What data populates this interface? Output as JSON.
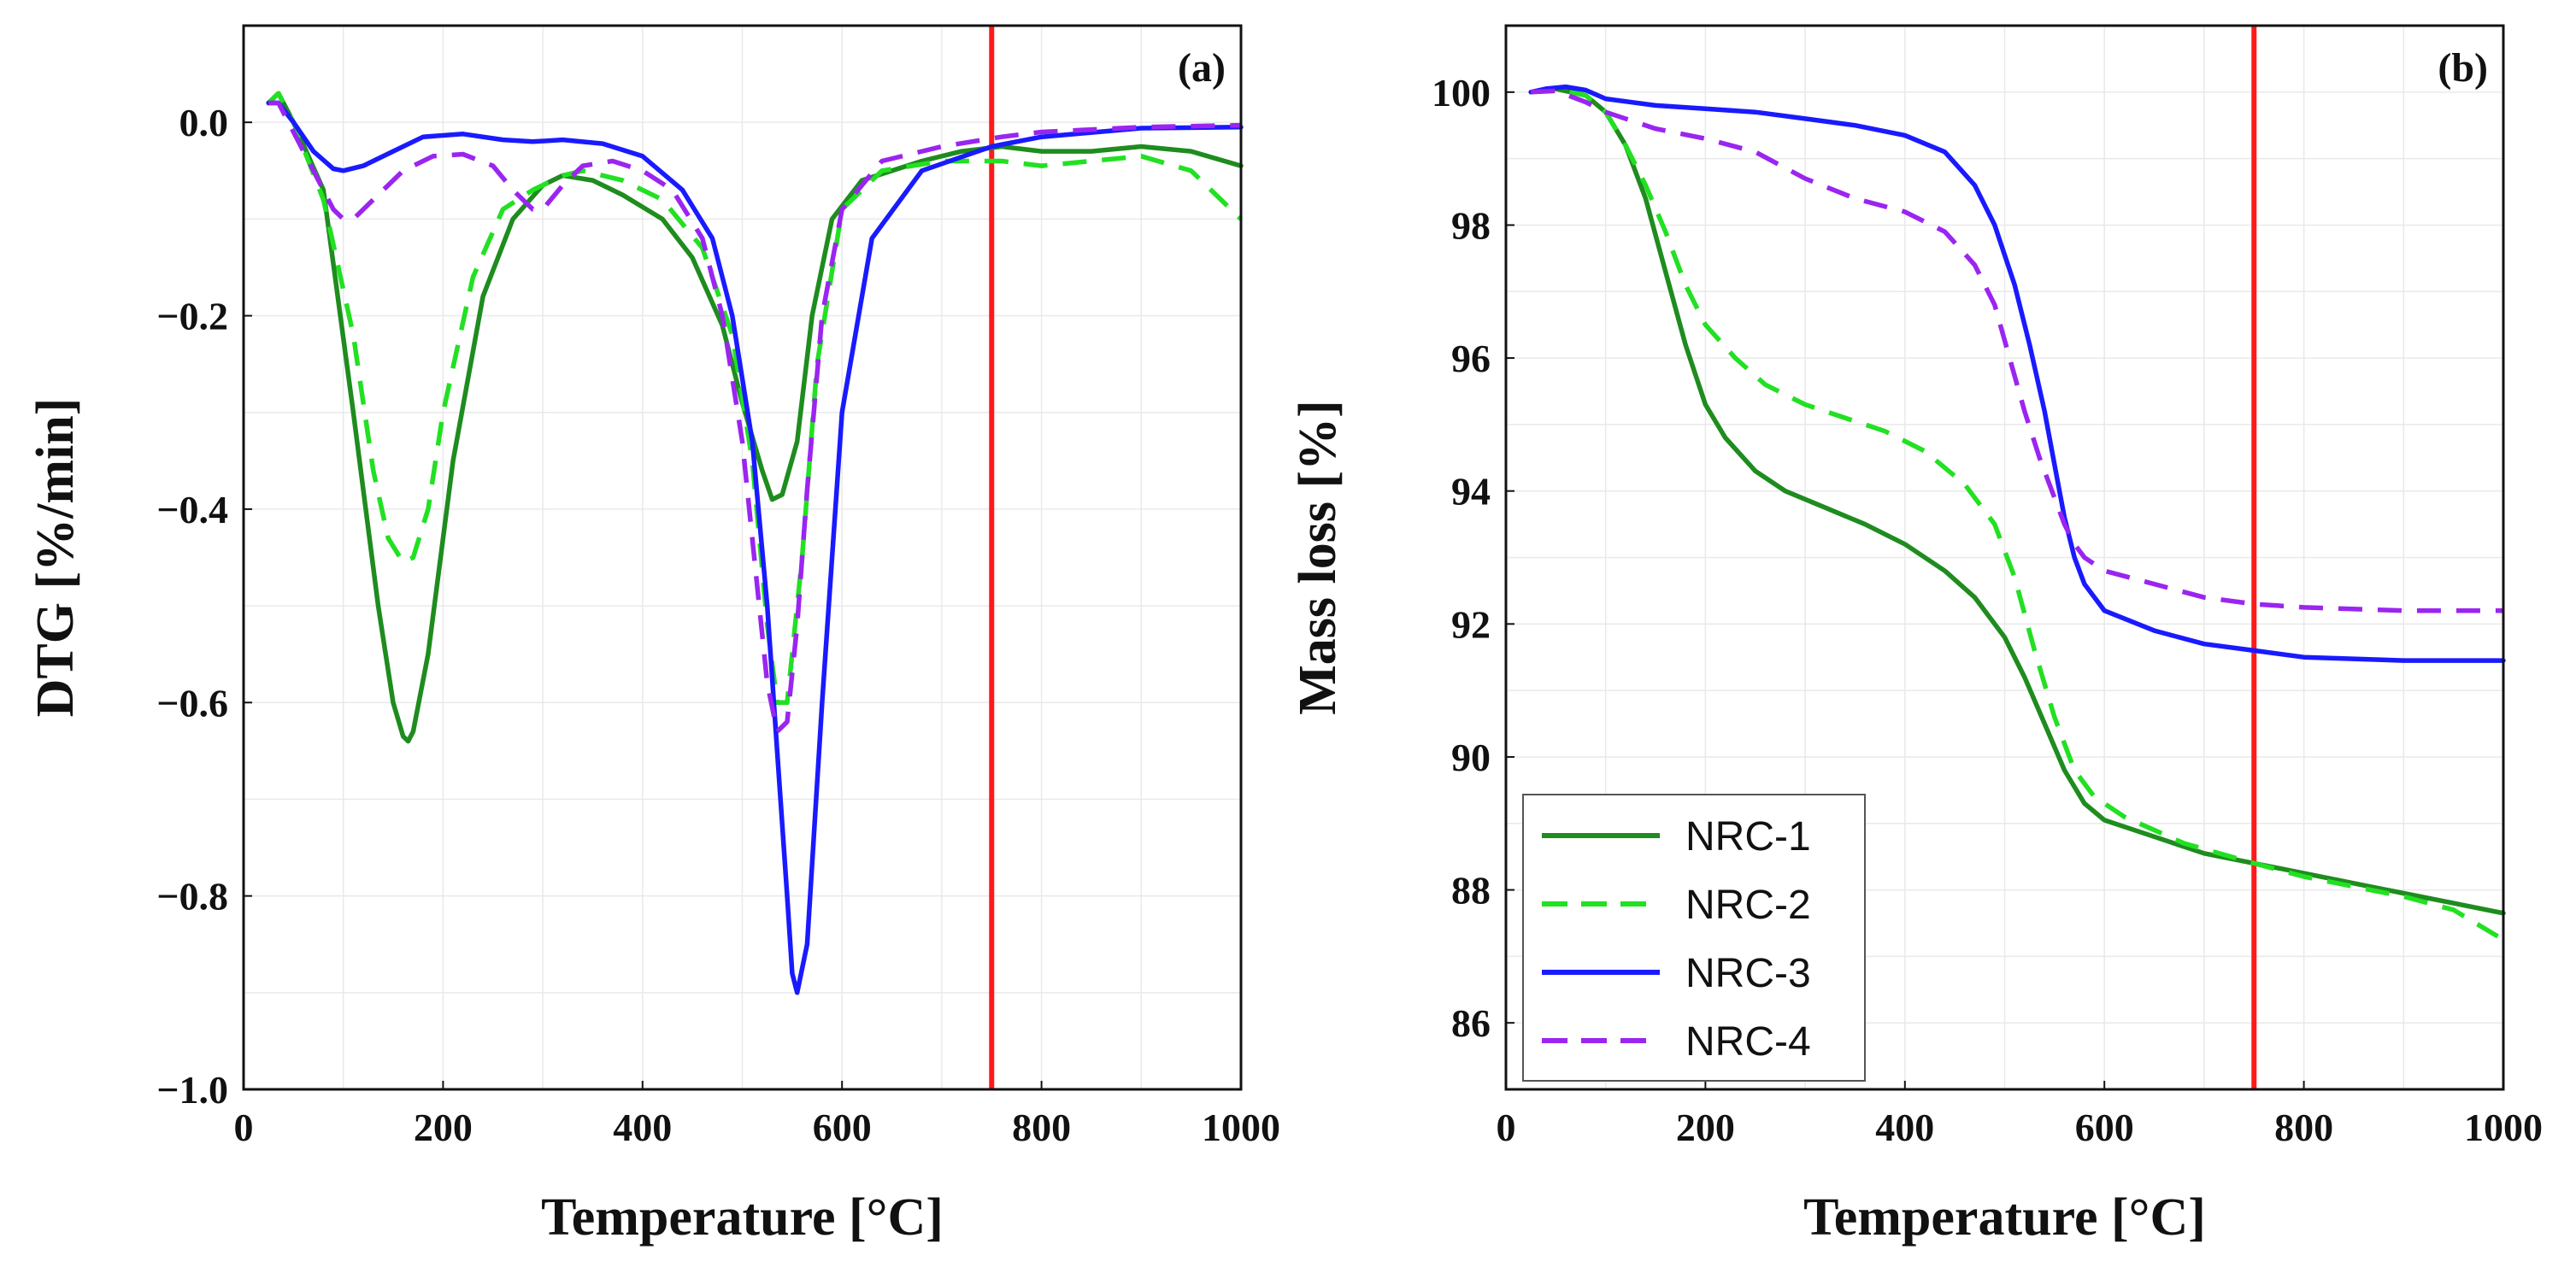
{
  "series_styles": [
    {
      "name": "NRC-1",
      "color": "#1e8c1e",
      "dash": "solid"
    },
    {
      "name": "NRC-2",
      "color": "#22e022",
      "dash": "dashed"
    },
    {
      "name": "NRC-3",
      "color": "#1a1aff",
      "dash": "solid"
    },
    {
      "name": "NRC-4",
      "color": "#9b25f0",
      "dash": "dashed"
    }
  ],
  "vline_color": "#ff1a1a",
  "chart_data": [
    {
      "type": "line",
      "panel_label": "(a)",
      "xlabel": "Temperature [°C]",
      "ylabel": "DTG [%/min]",
      "xlim": [
        0,
        1000
      ],
      "ylim": [
        -1.0,
        0.1
      ],
      "x_ticks": [
        0,
        200,
        400,
        600,
        800,
        1000
      ],
      "y_ticks": [
        0.0,
        -0.2,
        -0.4,
        -0.6,
        -0.8,
        -1.0
      ],
      "y_tick_labels": [
        "0.0",
        "−0.2",
        "−0.4",
        "−0.6",
        "−0.8",
        "−1.0"
      ],
      "grid": true,
      "vertical_line_x": 750,
      "series": [
        {
          "name": "NRC-1",
          "x": [
            25,
            35,
            50,
            80,
            110,
            135,
            150,
            160,
            165,
            170,
            185,
            210,
            240,
            270,
            300,
            320,
            350,
            380,
            420,
            450,
            480,
            500,
            520,
            530,
            540,
            555,
            570,
            590,
            620,
            680,
            720,
            760,
            800,
            850,
            900,
            950,
            1000
          ],
          "y": [
            0.02,
            0.03,
            0.0,
            -0.07,
            -0.3,
            -0.5,
            -0.6,
            -0.635,
            -0.64,
            -0.63,
            -0.55,
            -0.35,
            -0.18,
            -0.1,
            -0.065,
            -0.055,
            -0.06,
            -0.075,
            -0.1,
            -0.14,
            -0.21,
            -0.29,
            -0.36,
            -0.39,
            -0.385,
            -0.33,
            -0.2,
            -0.1,
            -0.06,
            -0.04,
            -0.03,
            -0.025,
            -0.03,
            -0.03,
            -0.025,
            -0.03,
            -0.045
          ]
        },
        {
          "name": "NRC-2",
          "x": [
            25,
            35,
            50,
            80,
            110,
            130,
            145,
            160,
            170,
            185,
            200,
            230,
            260,
            290,
            320,
            340,
            380,
            420,
            460,
            490,
            510,
            525,
            535,
            545,
            560,
            575,
            600,
            640,
            700,
            760,
            800,
            850,
            900,
            950,
            1000
          ],
          "y": [
            0.02,
            0.03,
            0.0,
            -0.08,
            -0.22,
            -0.36,
            -0.43,
            -0.455,
            -0.45,
            -0.4,
            -0.3,
            -0.16,
            -0.09,
            -0.07,
            -0.055,
            -0.05,
            -0.06,
            -0.08,
            -0.13,
            -0.22,
            -0.35,
            -0.52,
            -0.6,
            -0.6,
            -0.45,
            -0.25,
            -0.09,
            -0.05,
            -0.04,
            -0.04,
            -0.045,
            -0.04,
            -0.035,
            -0.05,
            -0.1
          ]
        },
        {
          "name": "NRC-3",
          "x": [
            25,
            35,
            50,
            70,
            90,
            100,
            120,
            150,
            180,
            220,
            260,
            290,
            320,
            360,
            400,
            440,
            470,
            490,
            510,
            525,
            535,
            545,
            550,
            555,
            565,
            580,
            600,
            630,
            680,
            750,
            800,
            900,
            1000
          ],
          "y": [
            0.02,
            0.02,
            0.0,
            -0.03,
            -0.048,
            -0.05,
            -0.045,
            -0.03,
            -0.015,
            -0.012,
            -0.018,
            -0.02,
            -0.018,
            -0.022,
            -0.035,
            -0.07,
            -0.12,
            -0.2,
            -0.33,
            -0.5,
            -0.65,
            -0.8,
            -0.88,
            -0.9,
            -0.85,
            -0.6,
            -0.3,
            -0.12,
            -0.05,
            -0.025,
            -0.015,
            -0.006,
            -0.005
          ]
        },
        {
          "name": "NRC-4",
          "x": [
            25,
            35,
            50,
            70,
            90,
            100,
            110,
            130,
            160,
            190,
            220,
            250,
            270,
            290,
            300,
            320,
            340,
            370,
            400,
            430,
            460,
            480,
            500,
            515,
            525,
            535,
            545,
            555,
            565,
            580,
            600,
            640,
            700,
            760,
            800,
            900,
            1000
          ],
          "y": [
            0.02,
            0.02,
            -0.01,
            -0.05,
            -0.09,
            -0.1,
            -0.1,
            -0.08,
            -0.05,
            -0.035,
            -0.033,
            -0.045,
            -0.07,
            -0.09,
            -0.09,
            -0.065,
            -0.045,
            -0.04,
            -0.05,
            -0.07,
            -0.12,
            -0.2,
            -0.33,
            -0.48,
            -0.58,
            -0.63,
            -0.62,
            -0.52,
            -0.38,
            -0.2,
            -0.09,
            -0.04,
            -0.025,
            -0.015,
            -0.01,
            -0.005,
            -0.003
          ]
        }
      ]
    },
    {
      "type": "line",
      "panel_label": "(b)",
      "xlabel": "Temperature [°C]",
      "ylabel": "Mass loss [%]",
      "xlim": [
        0,
        1000
      ],
      "ylim": [
        85,
        101
      ],
      "x_ticks": [
        0,
        200,
        400,
        600,
        800,
        1000
      ],
      "y_ticks": [
        86,
        88,
        90,
        92,
        94,
        96,
        98,
        100
      ],
      "y_tick_labels": [
        "86",
        "88",
        "90",
        "92",
        "94",
        "96",
        "98",
        "100"
      ],
      "grid": true,
      "legend_position": "bottom-left",
      "vertical_line_x": 750,
      "series": [
        {
          "name": "NRC-1",
          "x": [
            25,
            50,
            80,
            100,
            120,
            140,
            160,
            180,
            200,
            220,
            250,
            280,
            320,
            360,
            400,
            440,
            470,
            500,
            520,
            540,
            560,
            580,
            600,
            650,
            700,
            750,
            800,
            850,
            900,
            950,
            1000
          ],
          "y": [
            100.0,
            100.05,
            99.95,
            99.7,
            99.2,
            98.4,
            97.3,
            96.2,
            95.3,
            94.8,
            94.3,
            94.0,
            93.75,
            93.5,
            93.2,
            92.8,
            92.4,
            91.8,
            91.2,
            90.5,
            89.8,
            89.3,
            89.05,
            88.8,
            88.55,
            88.4,
            88.25,
            88.1,
            87.95,
            87.8,
            87.65
          ]
        },
        {
          "name": "NRC-2",
          "x": [
            25,
            50,
            80,
            100,
            120,
            140,
            160,
            180,
            200,
            230,
            260,
            300,
            340,
            380,
            420,
            460,
            490,
            510,
            530,
            550,
            570,
            590,
            620,
            680,
            750,
            800,
            850,
            900,
            950,
            1000
          ],
          "y": [
            100.0,
            100.05,
            99.95,
            99.7,
            99.2,
            98.6,
            97.9,
            97.1,
            96.5,
            96.0,
            95.6,
            95.3,
            95.1,
            94.9,
            94.6,
            94.1,
            93.5,
            92.7,
            91.6,
            90.6,
            89.8,
            89.4,
            89.1,
            88.7,
            88.4,
            88.2,
            88.05,
            87.9,
            87.7,
            87.25
          ]
        },
        {
          "name": "NRC-3",
          "x": [
            25,
            40,
            60,
            80,
            100,
            150,
            200,
            250,
            300,
            350,
            400,
            440,
            470,
            490,
            510,
            525,
            540,
            550,
            560,
            570,
            580,
            600,
            650,
            700,
            750,
            800,
            900,
            1000
          ],
          "y": [
            100.0,
            100.05,
            100.08,
            100.03,
            99.9,
            99.8,
            99.75,
            99.7,
            99.6,
            99.5,
            99.35,
            99.1,
            98.6,
            98.0,
            97.1,
            96.2,
            95.2,
            94.4,
            93.6,
            93.0,
            92.6,
            92.2,
            91.9,
            91.7,
            91.6,
            91.5,
            91.45,
            91.45
          ]
        },
        {
          "name": "NRC-4",
          "x": [
            25,
            50,
            80,
            100,
            150,
            200,
            250,
            300,
            350,
            400,
            440,
            470,
            490,
            505,
            520,
            535,
            550,
            560,
            570,
            580,
            600,
            650,
            700,
            750,
            800,
            900,
            1000
          ],
          "y": [
            100.0,
            100.02,
            99.85,
            99.7,
            99.45,
            99.3,
            99.1,
            98.7,
            98.4,
            98.2,
            97.9,
            97.4,
            96.8,
            96.0,
            95.2,
            94.5,
            93.9,
            93.5,
            93.2,
            93.0,
            92.8,
            92.6,
            92.4,
            92.3,
            92.25,
            92.2,
            92.2
          ]
        }
      ]
    }
  ]
}
